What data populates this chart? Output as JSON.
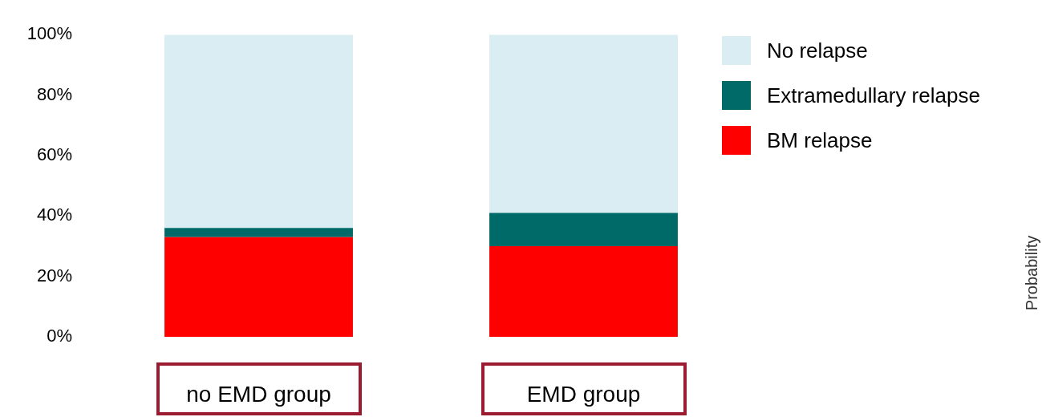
{
  "chart_data": {
    "type": "bar",
    "stacked": true,
    "categories": [
      "no EMD group",
      "EMD group"
    ],
    "series": [
      {
        "name": "BM relapse",
        "color": "#ff0000",
        "values": [
          33,
          30
        ]
      },
      {
        "name": "Extramedullary relapse",
        "color": "#006a68",
        "values": [
          3,
          11
        ]
      },
      {
        "name": "No relapse",
        "color": "#daedf3",
        "values": [
          64,
          59
        ]
      }
    ],
    "annotations": [
      "Probability"
    ],
    "ylim": [
      0,
      100
    ],
    "yticks": [
      {
        "value": 0,
        "label": "0%"
      },
      {
        "value": 20,
        "label": "20%"
      },
      {
        "value": 40,
        "label": "40%"
      },
      {
        "value": 60,
        "label": "60%"
      },
      {
        "value": 80,
        "label": "80%"
      },
      {
        "value": 100,
        "label": "100%"
      }
    ],
    "grid": false,
    "legend": "right"
  }
}
